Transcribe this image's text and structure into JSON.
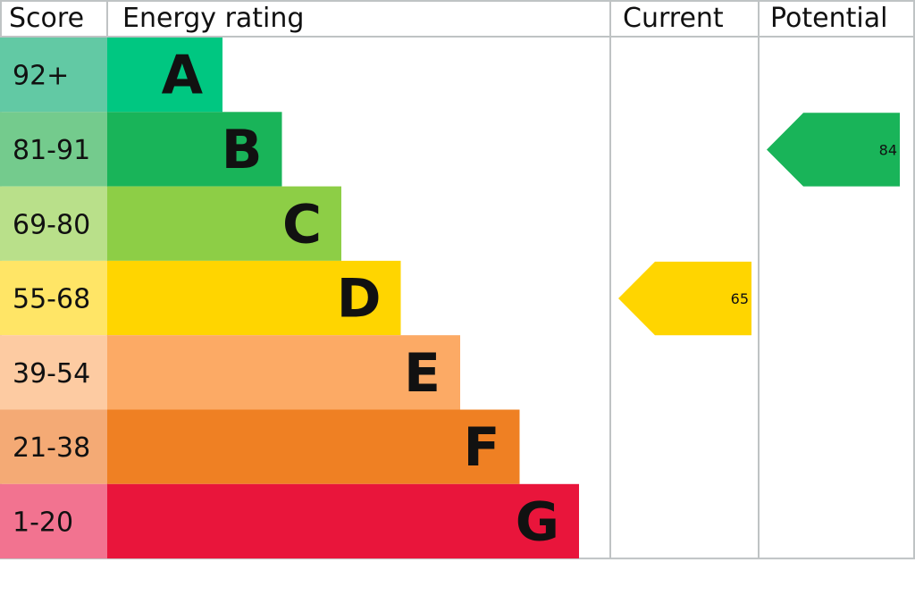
{
  "chart_data": {
    "type": "bar",
    "headers": {
      "score": "Score",
      "rating": "Energy rating",
      "current": "Current",
      "potential": "Potential"
    },
    "bands": [
      {
        "letter": "A",
        "range": "92+",
        "color": "#00c781",
        "light": "#62c9a4"
      },
      {
        "letter": "B",
        "range": "81-91",
        "color": "#19b459",
        "light": "#74cb8d"
      },
      {
        "letter": "C",
        "range": "69-80",
        "color": "#8dce46",
        "light": "#b9e08a"
      },
      {
        "letter": "D",
        "range": "55-68",
        "color": "#ffd500",
        "light": "#ffe566"
      },
      {
        "letter": "E",
        "range": "39-54",
        "color": "#fcaa65",
        "light": "#fdcba2"
      },
      {
        "letter": "F",
        "range": "21-38",
        "color": "#ef8023",
        "light": "#f4aa75"
      },
      {
        "letter": "G",
        "range": "1-20",
        "color": "#e9153b",
        "light": "#f27390"
      }
    ],
    "current": {
      "value": "65",
      "band": "D",
      "color": "#ffd500"
    },
    "potential": {
      "value": "84",
      "band": "B",
      "color": "#19b459"
    }
  }
}
